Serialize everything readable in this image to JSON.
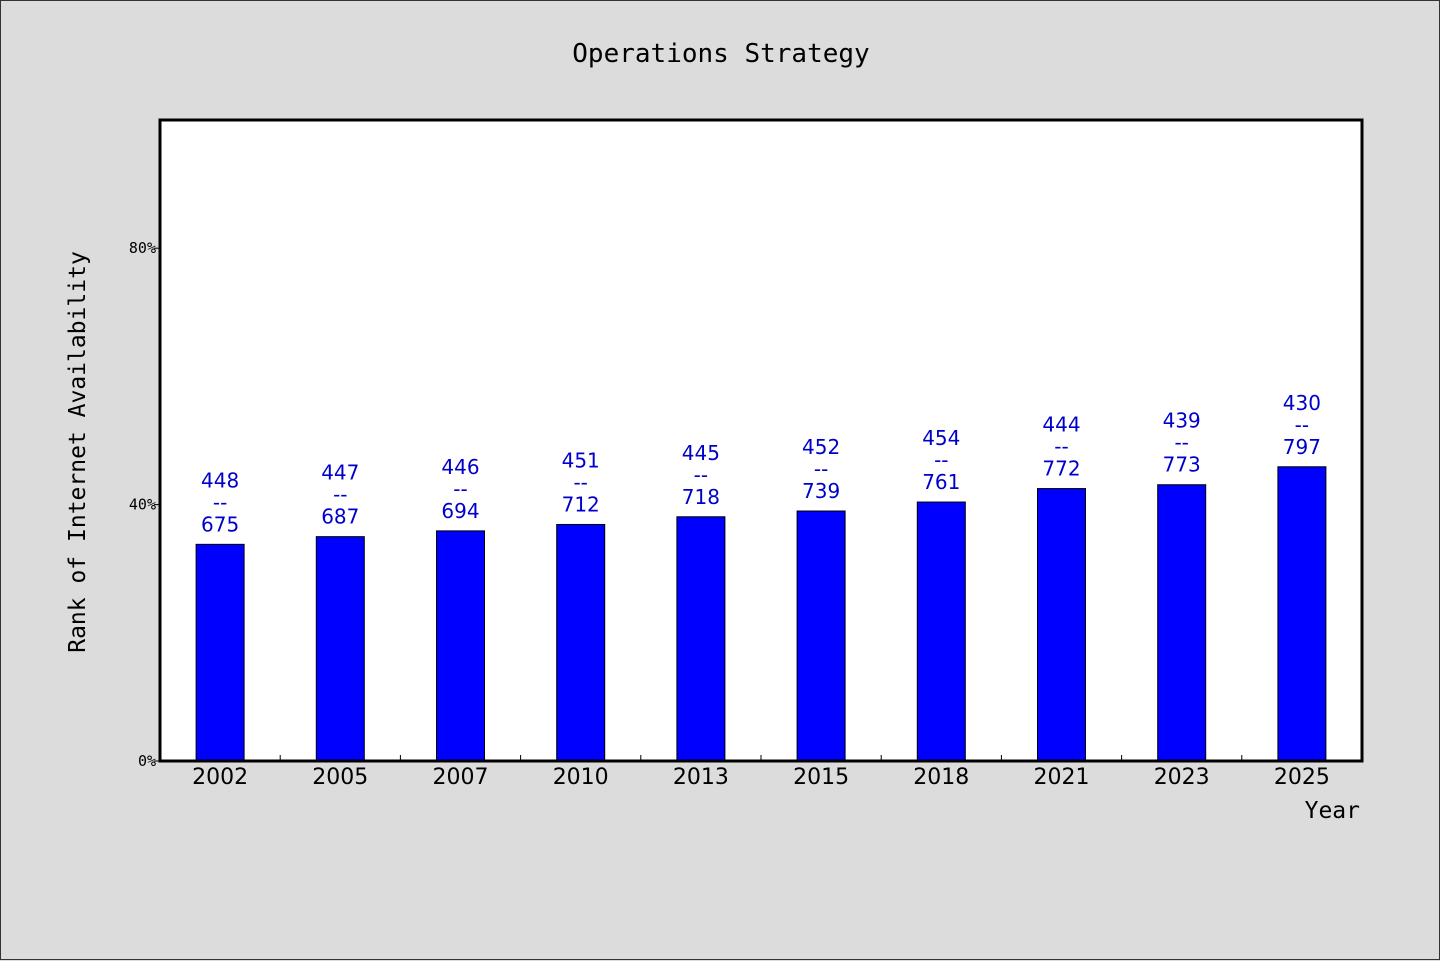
{
  "chart_data": {
    "type": "bar",
    "title": "Operations Strategy",
    "xlabel": "Year",
    "ylabel": "Rank of Internet Availability",
    "categories": [
      "2002",
      "2005",
      "2007",
      "2010",
      "2013",
      "2015",
      "2018",
      "2021",
      "2023",
      "2025"
    ],
    "series": [
      {
        "values": [
          33.8,
          35.0,
          35.9,
          36.9,
          38.1,
          39.0,
          40.4,
          42.5,
          43.1,
          45.9
        ],
        "color": "#0000ff"
      }
    ],
    "data_labels": [
      [
        "448",
        "--",
        "675"
      ],
      [
        "447",
        "--",
        "687"
      ],
      [
        "446",
        "--",
        "694"
      ],
      [
        "451",
        "--",
        "712"
      ],
      [
        "445",
        "--",
        "718"
      ],
      [
        "452",
        "--",
        "739"
      ],
      [
        "454",
        "--",
        "761"
      ],
      [
        "444",
        "--",
        "772"
      ],
      [
        "439",
        "--",
        "773"
      ],
      [
        "430",
        "--",
        "797"
      ]
    ],
    "ylim": [
      0,
      100
    ],
    "yticks": [
      0,
      40,
      80
    ],
    "ytick_labels": [
      "0%",
      "40%",
      "80%"
    ],
    "grid": false,
    "legend": "none",
    "colors": {
      "bar": "#0000ff",
      "data_label": "#0000cc",
      "plot_background": "#ffffff",
      "page_background": "#dcdcdc"
    }
  }
}
